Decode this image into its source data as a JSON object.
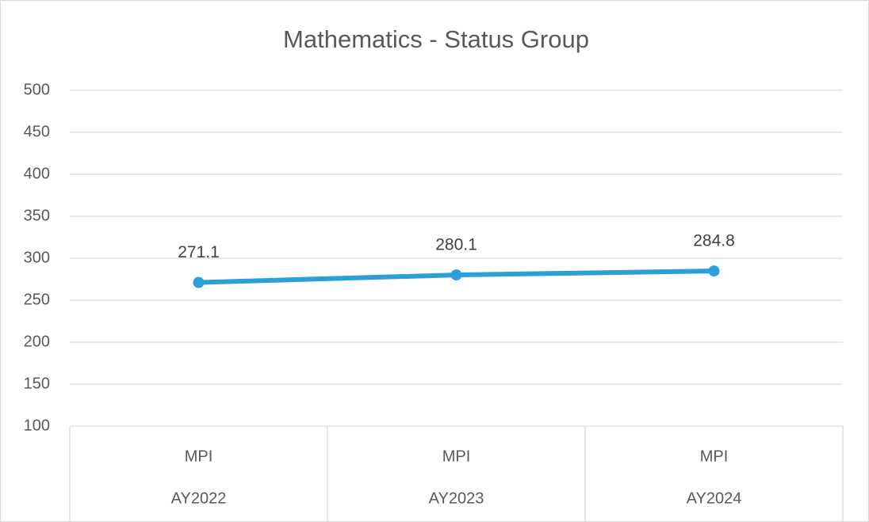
{
  "chart_data": {
    "type": "line",
    "title": "Mathematics - Status Group",
    "categories": [
      "AY2022",
      "AY2023",
      "AY2024"
    ],
    "subcategories": [
      "MPI",
      "MPI",
      "MPI"
    ],
    "series": [
      {
        "name": "MPI",
        "color": "#2a9fd8",
        "values": [
          271.1,
          280.1,
          284.8
        ]
      }
    ],
    "ylim": [
      100,
      500
    ],
    "yticks": [
      100,
      150,
      200,
      250,
      300,
      350,
      400,
      450,
      500
    ],
    "grid": true
  }
}
